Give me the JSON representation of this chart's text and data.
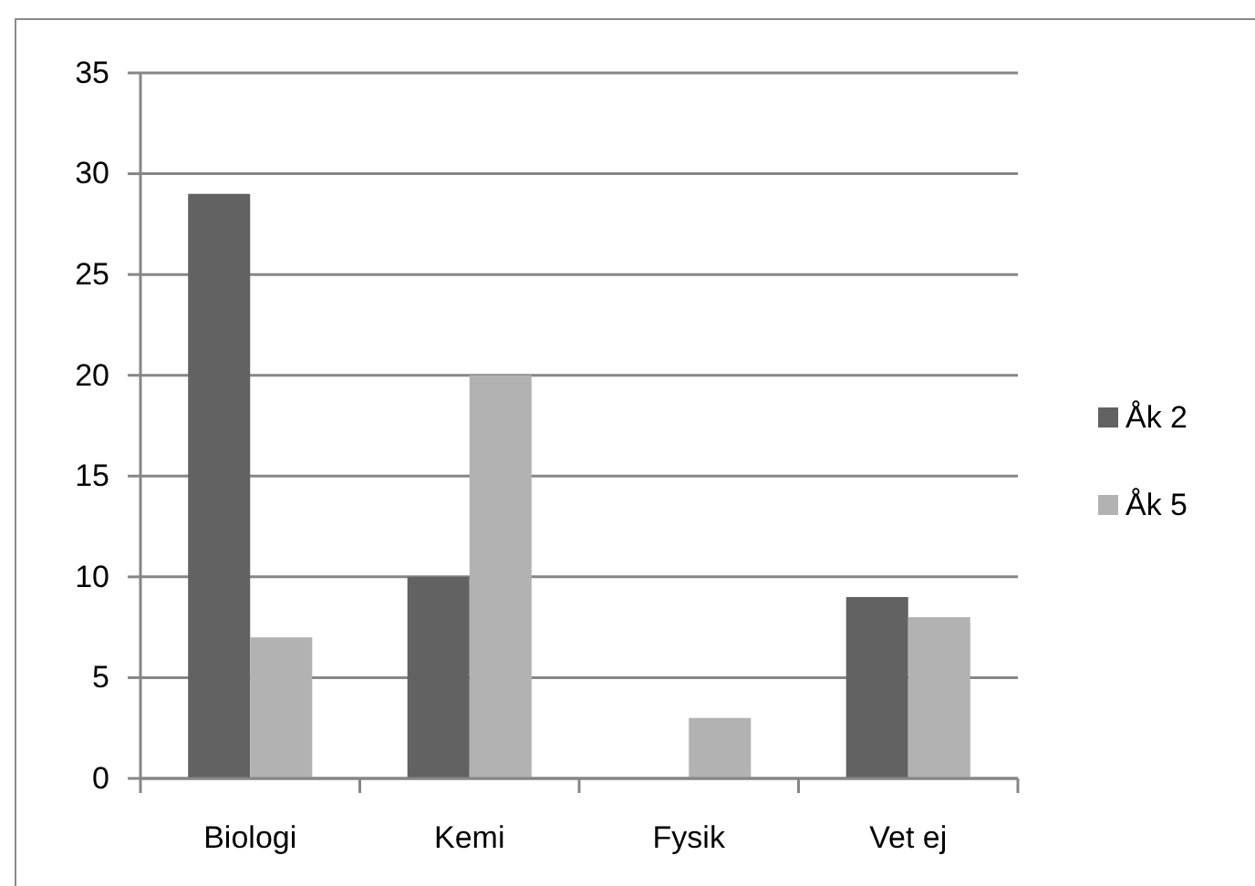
{
  "chart_data": {
    "type": "bar",
    "categories": [
      "Biologi",
      "Kemi",
      "Fysik",
      "Vet ej"
    ],
    "series": [
      {
        "name": "Åk 2",
        "color": "#626262",
        "values": [
          29,
          10,
          0,
          9
        ]
      },
      {
        "name": "Åk 5",
        "color": "#b2b2b2",
        "values": [
          7,
          20,
          3,
          8
        ]
      }
    ],
    "ylim": [
      0,
      35
    ],
    "yticks": [
      0,
      5,
      10,
      15,
      20,
      25,
      30,
      35
    ],
    "grid": "y",
    "legend": "right"
  }
}
